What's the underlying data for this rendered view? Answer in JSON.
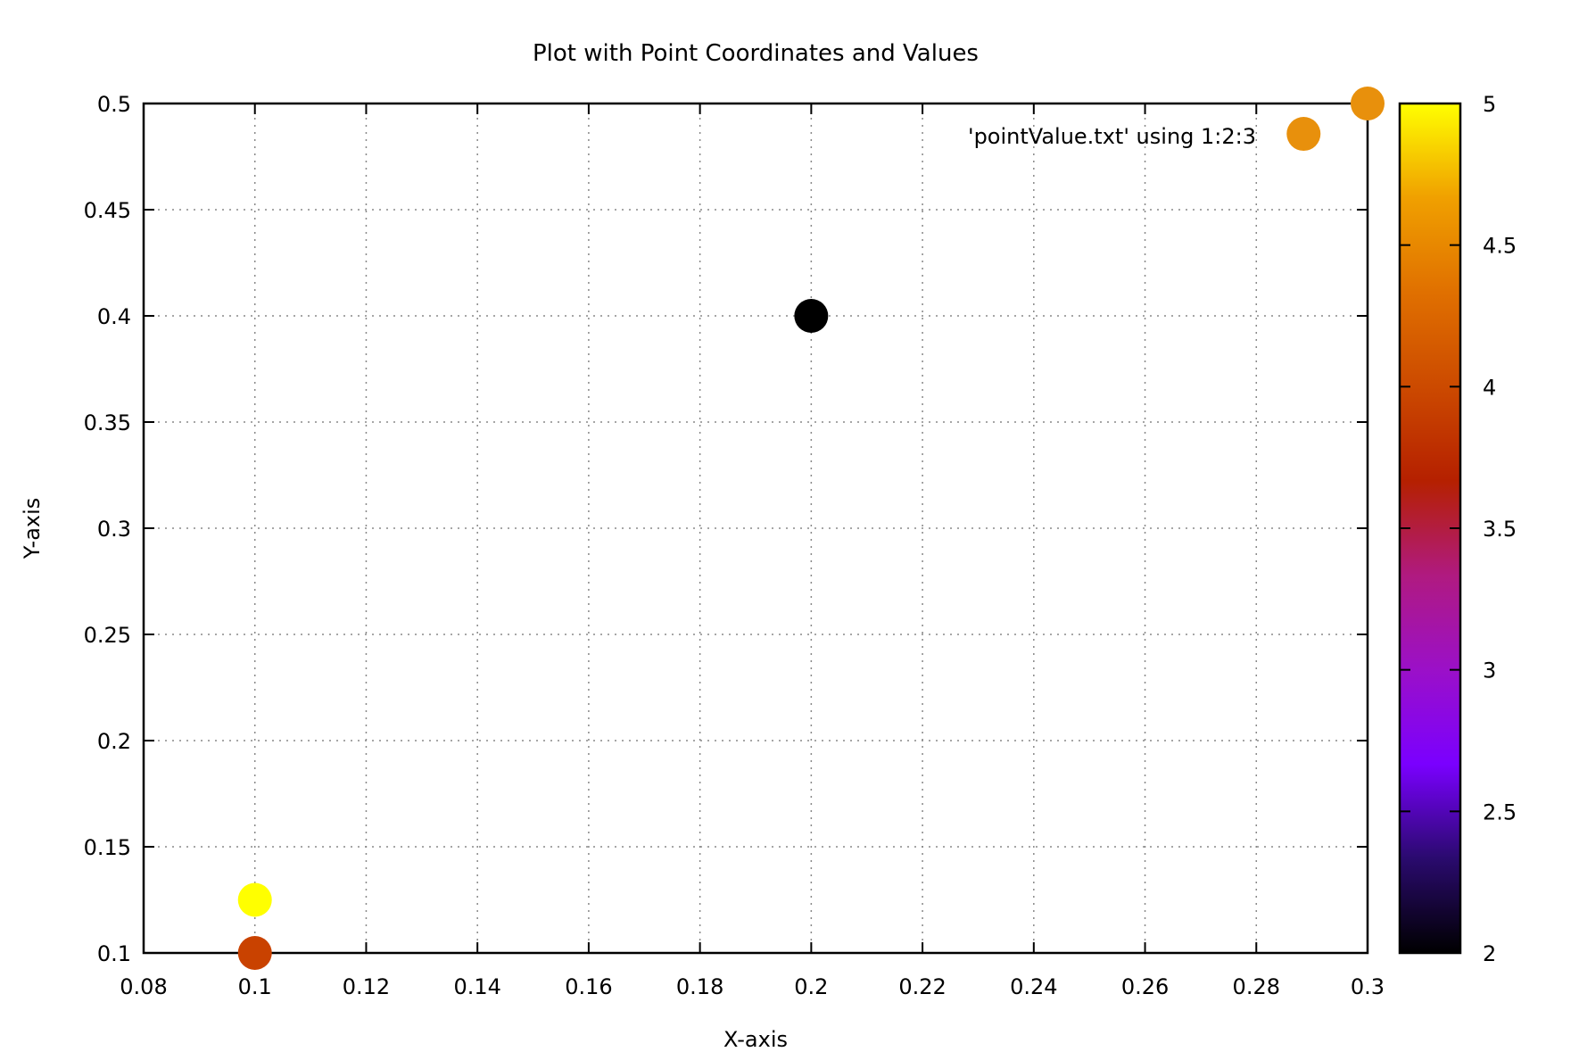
{
  "chart_data": {
    "type": "scatter",
    "title": "Plot with Point Coordinates and Values",
    "xlabel": "X-axis",
    "ylabel": "Y-axis",
    "xlim": [
      0.08,
      0.3
    ],
    "ylim": [
      0.1,
      0.5
    ],
    "xticks": [
      "0.08",
      "0.1",
      "0.12",
      "0.14",
      "0.16",
      "0.18",
      "0.2",
      "0.22",
      "0.24",
      "0.26",
      "0.28",
      "0.3"
    ],
    "yticks": [
      "0.1",
      "0.15",
      "0.2",
      "0.25",
      "0.3",
      "0.35",
      "0.4",
      "0.45",
      "0.5"
    ],
    "grid": true,
    "legend": {
      "position": "top-right",
      "entries": [
        "'pointValue.txt' using 1:2:3"
      ]
    },
    "colorbar": {
      "range": [
        2,
        5
      ],
      "ticks": [
        "2",
        "2.5",
        "3",
        "3.5",
        "4",
        "4.5",
        "5"
      ],
      "palette": [
        "#000000",
        "#2a0a6e",
        "#7a00ff",
        "#9b10c8",
        "#b01a80",
        "#b52000",
        "#cc4a00",
        "#e07000",
        "#f0a000",
        "#ffff00"
      ]
    },
    "series": [
      {
        "x": [
          0.1,
          0.1,
          0.2,
          0.2885,
          0.3
        ],
        "y": [
          0.1,
          0.125,
          0.4,
          0.4857,
          0.5
        ],
        "values": [
          4.0,
          5.0,
          2.0,
          4.55,
          4.55
        ],
        "colors": [
          "#c94200",
          "#ffff00",
          "#000000",
          "#e8900c",
          "#e8900c"
        ]
      }
    ]
  }
}
